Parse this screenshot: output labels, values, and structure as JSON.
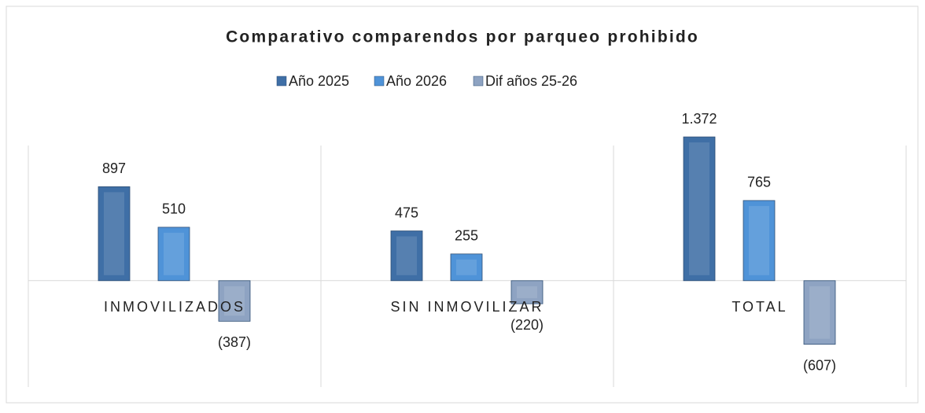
{
  "chart_data": {
    "type": "bar",
    "title": "Comparativo comparendos por parqueo prohibido",
    "categories": [
      "INMOVILIZADOS",
      "SIN INMOVILIZAR",
      "TOTAL"
    ],
    "series": [
      {
        "name": "Año 2025",
        "color": "#3f6fa6",
        "values": [
          897,
          475,
          1372
        ],
        "value_labels": [
          "897",
          "475",
          "1.372"
        ]
      },
      {
        "name": "Año 2026",
        "color": "#4f93d8",
        "values": [
          510,
          255,
          765
        ],
        "value_labels": [
          "510",
          "255",
          "765"
        ]
      },
      {
        "name": "Dif años 25-26",
        "color": "#8ea3c2",
        "values": [
          -387,
          -220,
          -607
        ],
        "value_labels": [
          "(387)",
          "(220)",
          "(607)"
        ]
      }
    ],
    "ylim": [
      -1000,
      1500
    ],
    "legend": "top"
  }
}
